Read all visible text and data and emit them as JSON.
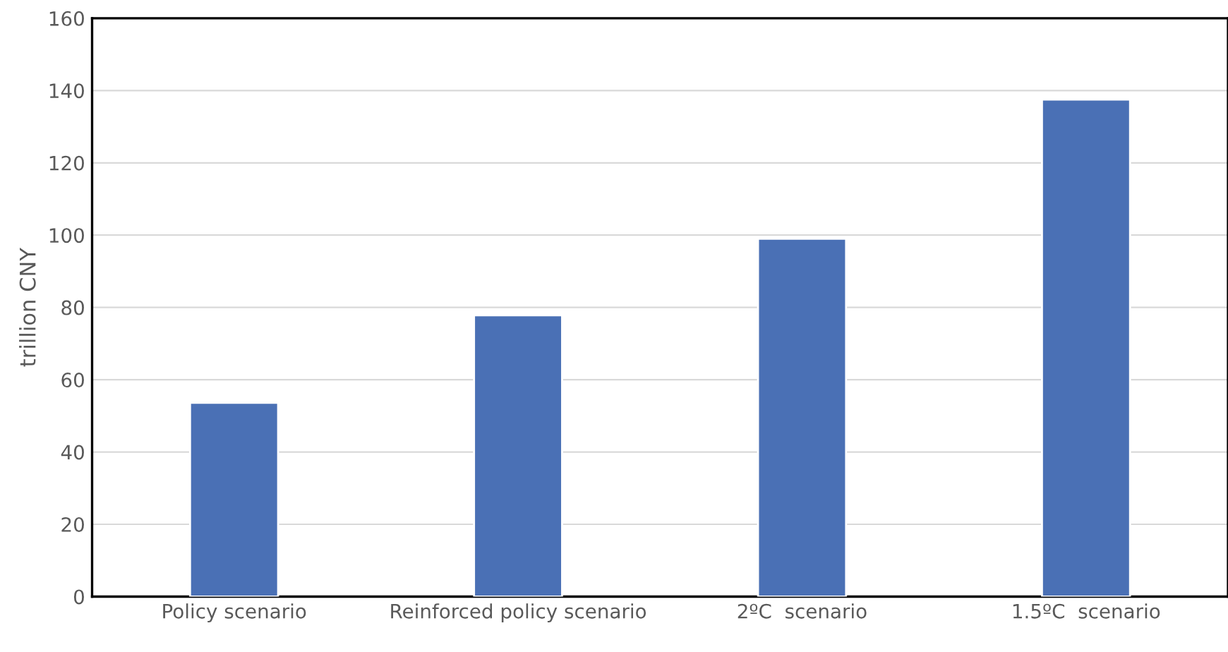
{
  "chart_data": {
    "type": "bar",
    "ylabel": "trillion CNY",
    "categories": [
      "Policy scenario",
      "Reinforced policy scenario",
      "2ºC  scenario",
      "1.5ºC  scenario"
    ],
    "values": [
      53.6,
      77.8,
      99,
      137.5
    ],
    "color": "#4a70b5",
    "ylim": [
      0,
      160
    ],
    "yticks": [
      0,
      20,
      40,
      60,
      80,
      100,
      120,
      140,
      160
    ],
    "grid": "y"
  }
}
